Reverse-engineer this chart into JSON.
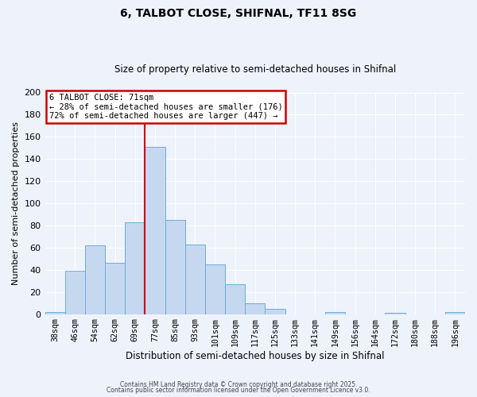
{
  "title": "6, TALBOT CLOSE, SHIFNAL, TF11 8SG",
  "subtitle": "Size of property relative to semi-detached houses in Shifnal",
  "xlabel": "Distribution of semi-detached houses by size in Shifnal",
  "ylabel": "Number of semi-detached properties",
  "bar_labels": [
    "38sqm",
    "46sqm",
    "54sqm",
    "62sqm",
    "69sqm",
    "77sqm",
    "85sqm",
    "93sqm",
    "101sqm",
    "109sqm",
    "117sqm",
    "125sqm",
    "133sqm",
    "141sqm",
    "149sqm",
    "156sqm",
    "164sqm",
    "172sqm",
    "180sqm",
    "188sqm",
    "196sqm"
  ],
  "bar_values": [
    2,
    39,
    62,
    46,
    83,
    151,
    85,
    63,
    45,
    27,
    10,
    5,
    0,
    0,
    2,
    0,
    0,
    1,
    0,
    0,
    2
  ],
  "bar_color": "#c5d8f0",
  "bar_edgecolor": "#6baed6",
  "vline_x": 4.5,
  "vline_color": "#cc0000",
  "annotation_title": "6 TALBOT CLOSE: 71sqm",
  "annotation_line1": "← 28% of semi-detached houses are smaller (176)",
  "annotation_line2": "72% of semi-detached houses are larger (447) →",
  "annotation_box_edgecolor": "#cc0000",
  "ylim": [
    0,
    200
  ],
  "yticks": [
    0,
    20,
    40,
    60,
    80,
    100,
    120,
    140,
    160,
    180,
    200
  ],
  "background_color": "#eef2fb",
  "grid_color": "#ffffff",
  "footer1": "Contains HM Land Registry data © Crown copyright and database right 2025.",
  "footer2": "Contains public sector information licensed under the Open Government Licence v3.0."
}
